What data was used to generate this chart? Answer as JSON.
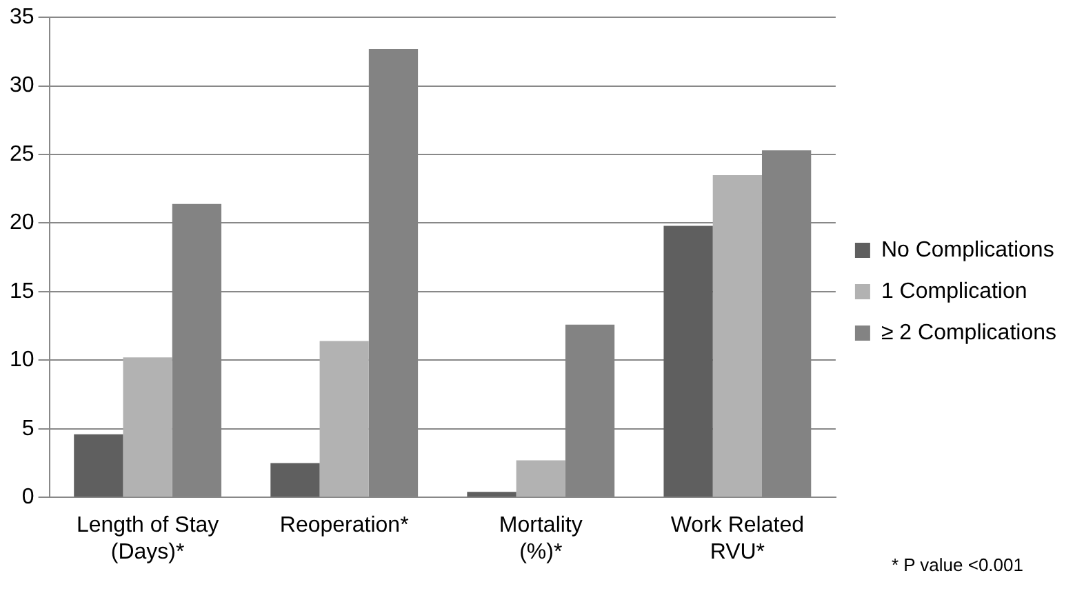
{
  "chart_data": {
    "type": "bar",
    "categories": [
      "Length of Stay\n(Days)*",
      "Reoperation*",
      "Mortality\n(%)*",
      "Work Related\nRVU*"
    ],
    "series": [
      {
        "name": "No Complications",
        "color": "#5f5f5f",
        "values": [
          4.6,
          2.5,
          0.4,
          19.8
        ]
      },
      {
        "name": "1 Complication",
        "color": "#b2b2b2",
        "values": [
          10.2,
          11.4,
          2.7,
          23.5
        ]
      },
      {
        "name": "≥ 2 Complications",
        "color": "#838383",
        "values": [
          21.4,
          32.7,
          12.6,
          25.3
        ]
      }
    ],
    "ylim": [
      0,
      35
    ],
    "yticks": [
      0,
      5,
      10,
      15,
      20,
      25,
      30,
      35
    ],
    "grid": "y",
    "legend": "right",
    "annotations": [
      "* P value <0.001"
    ]
  }
}
